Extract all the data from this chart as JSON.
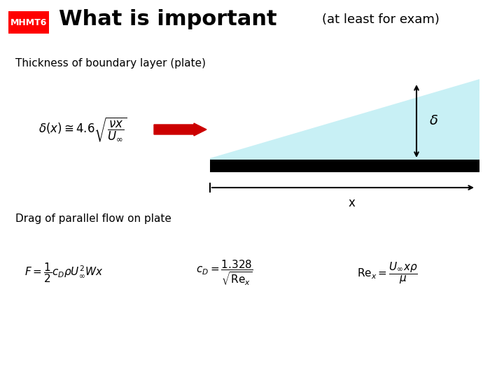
{
  "bg_color": "#ffffff",
  "title_large": "What is important",
  "title_small": "(at least for exam)",
  "label_badge": "MHMT6",
  "badge_bg": "#ff0000",
  "badge_fg": "#ffffff",
  "section1": "Thickness of boundary layer (plate)",
  "section2": "Drag of parallel flow on plate",
  "formula1": "$\\delta(x) \\cong 4.6\\sqrt{\\dfrac{\\nu x}{U_\\infty}}$",
  "formula2": "$F = \\dfrac{1}{2}c_D \\rho U_\\infty^2 W x$",
  "formula3": "$c_D = \\dfrac{1.328}{\\sqrt{\\mathrm{Re}_x}}$",
  "formula4": "$\\mathrm{Re}_x = \\dfrac{U_\\infty x \\rho}{\\mu}$",
  "plate_color": "#000000",
  "boundary_color": "#c8f0f5",
  "arrow_color": "#cc0000",
  "delta_label": "$\\delta$",
  "x_label": "x"
}
